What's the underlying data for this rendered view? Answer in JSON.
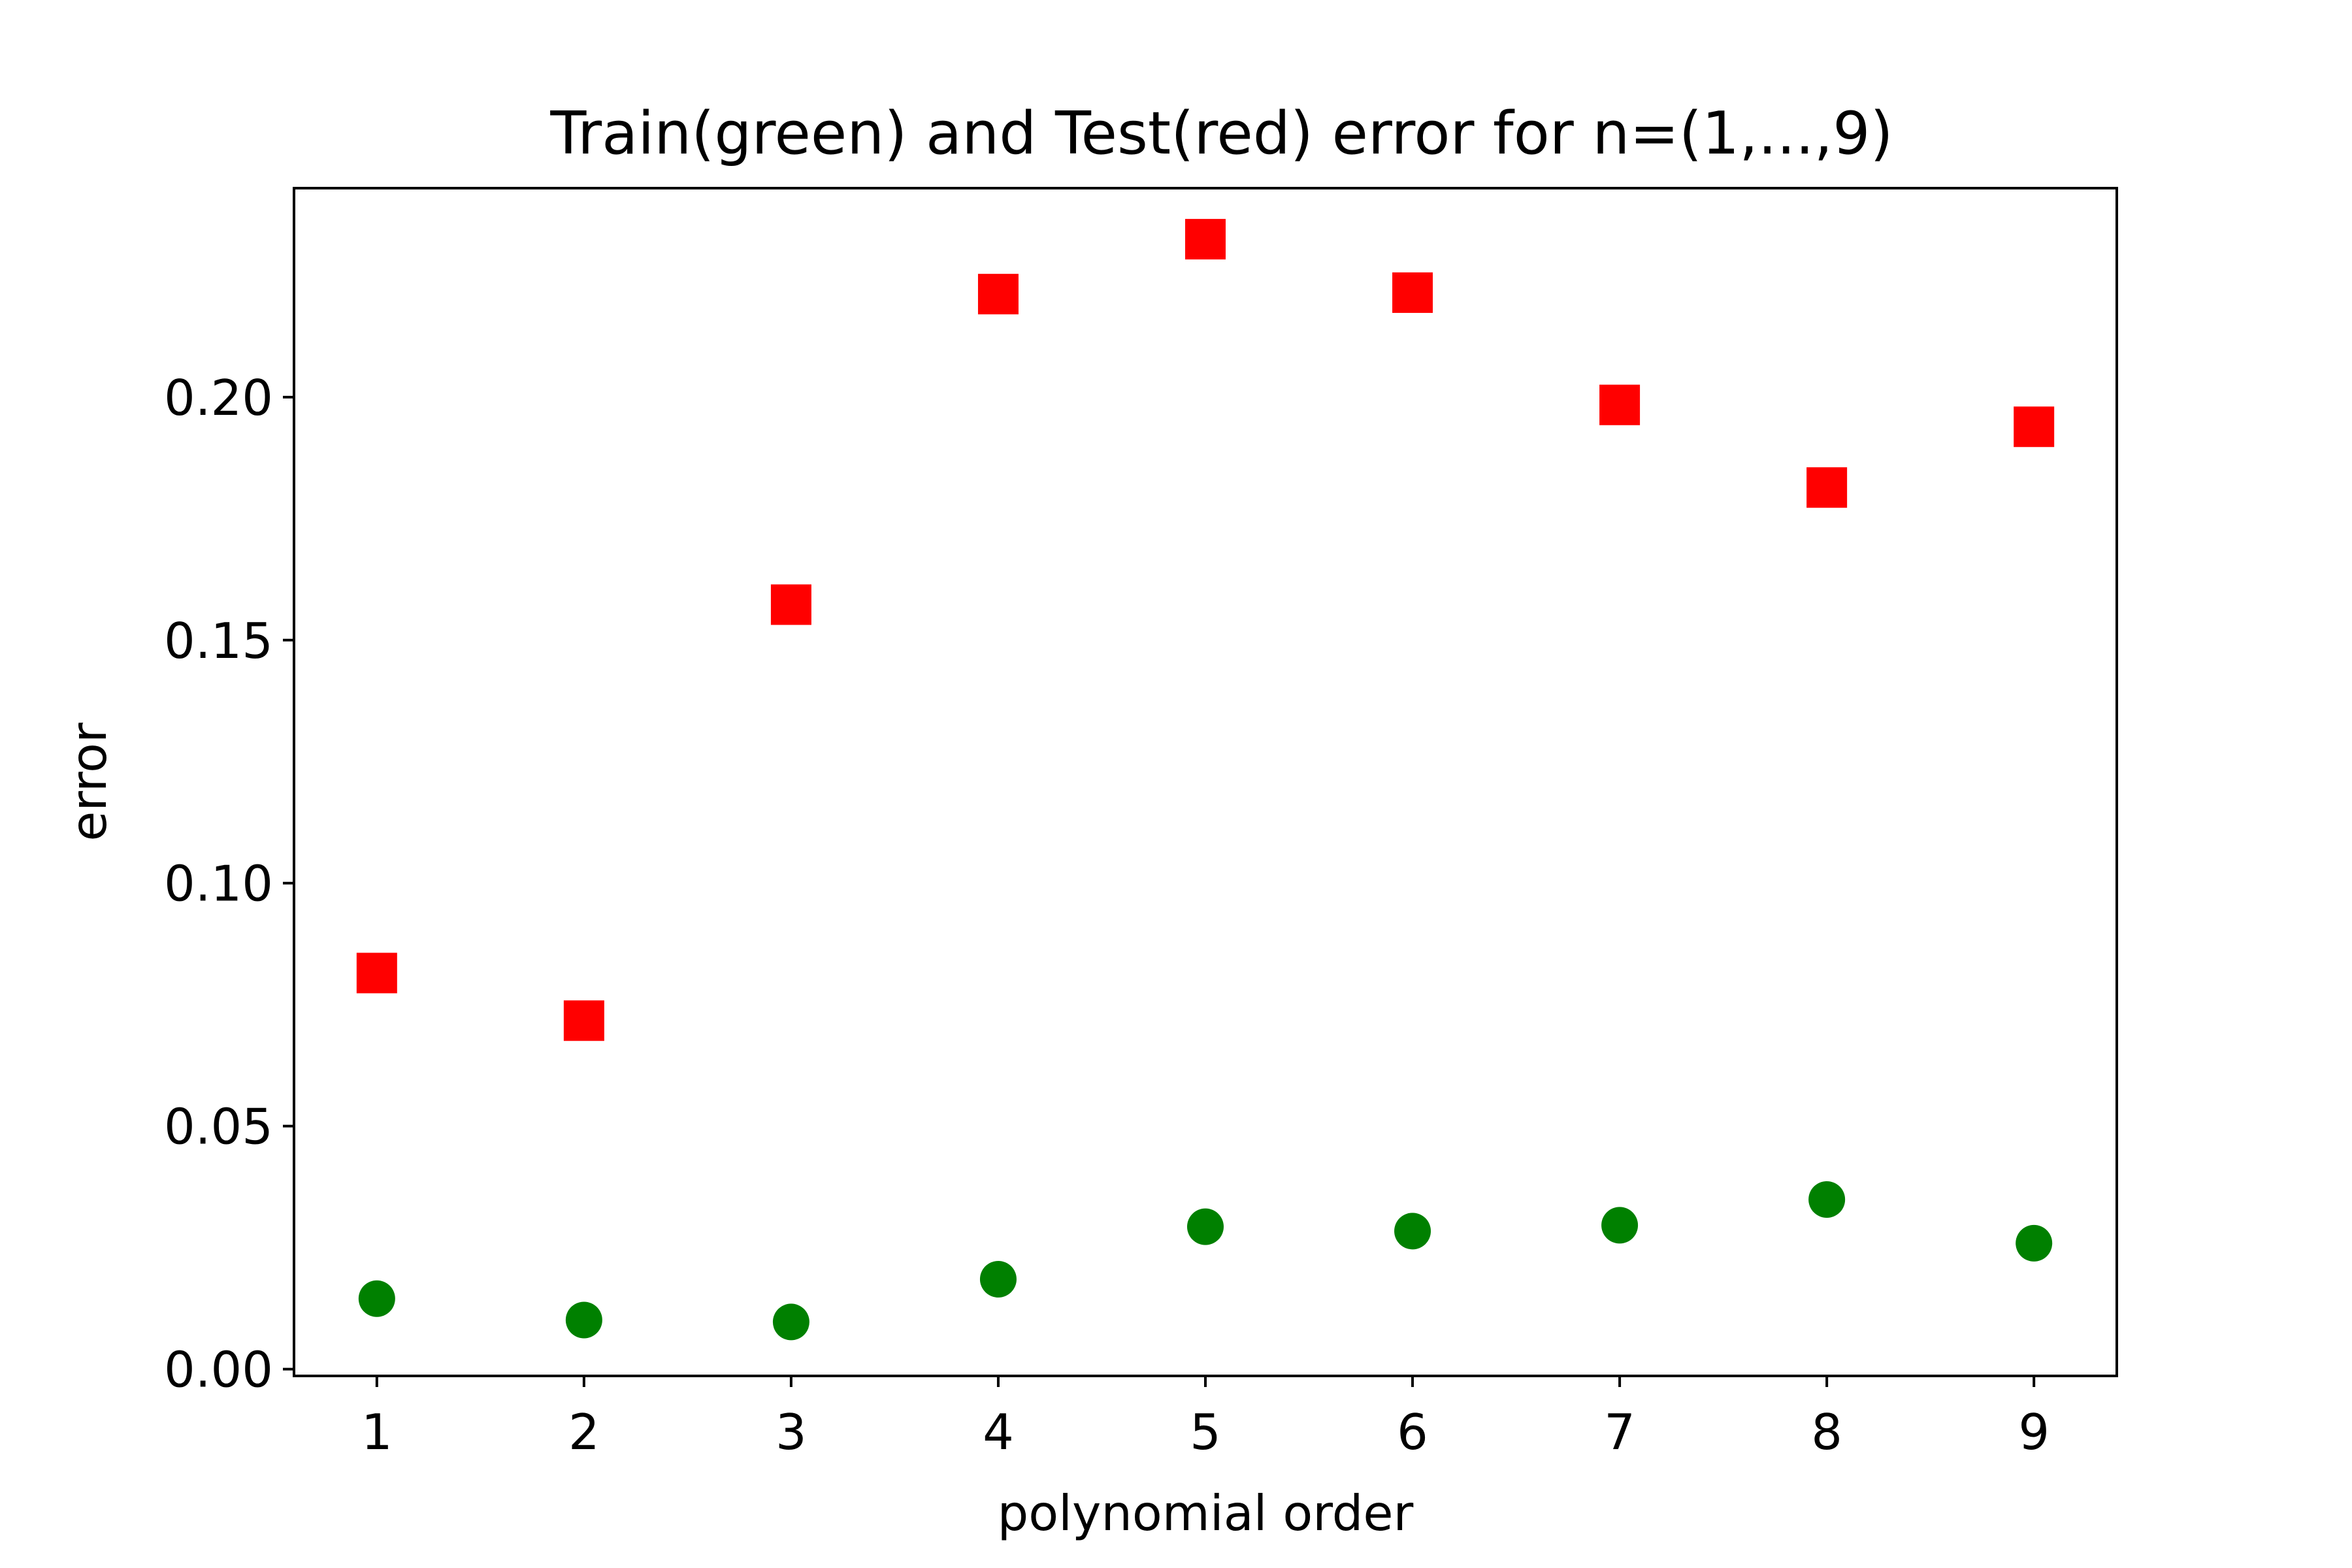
{
  "chart_data": {
    "type": "scatter",
    "title": "Train(green) and Test(red) error for n=(1,...,9)",
    "xlabel": "polynomial order",
    "ylabel": "error",
    "xlim": [
      0.6,
      9.4
    ],
    "ylim": [
      -0.0014,
      0.243
    ],
    "x_ticks": [
      "1",
      "2",
      "3",
      "4",
      "5",
      "6",
      "7",
      "8",
      "9"
    ],
    "y_ticks": [
      "0.00",
      "0.05",
      "0.10",
      "0.15",
      "0.20"
    ],
    "grid": false,
    "series": [
      {
        "marker": "square",
        "color": "#ff0000",
        "x": [
          1,
          2,
          3,
          4,
          5,
          6,
          7,
          8,
          9
        ],
        "y": [
          0.0815,
          0.0717,
          0.1573,
          0.2212,
          0.2325,
          0.2215,
          0.1984,
          0.1814,
          0.1939
        ]
      },
      {
        "marker": "circle",
        "color": "#008000",
        "x": [
          1,
          2,
          3,
          4,
          5,
          6,
          7,
          8,
          9
        ],
        "y": [
          0.0145,
          0.0101,
          0.0097,
          0.0185,
          0.0293,
          0.0284,
          0.0296,
          0.0349,
          0.0259
        ]
      }
    ]
  }
}
